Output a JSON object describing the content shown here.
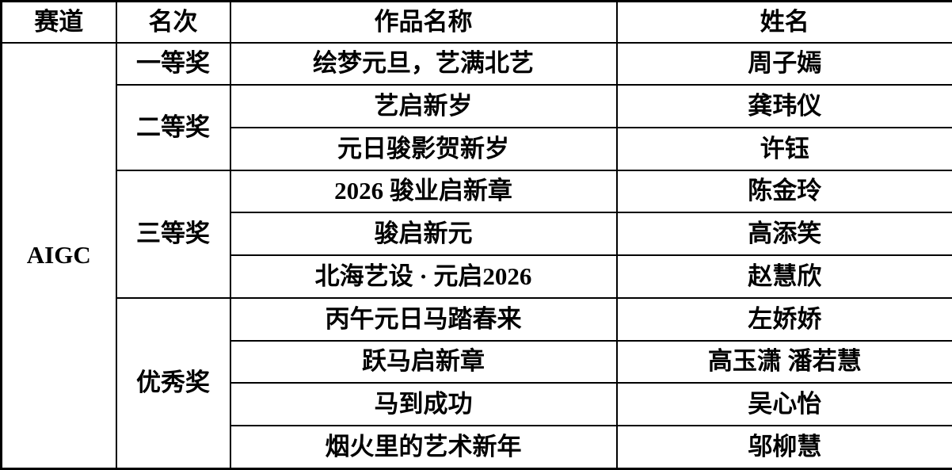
{
  "table": {
    "headers": {
      "track": "赛道",
      "rank": "名次",
      "work": "作品名称",
      "name": "姓名"
    },
    "track": "AIGC",
    "groups": [
      {
        "rank": "一等奖",
        "entries": [
          {
            "work": "绘梦元旦，艺满北艺",
            "name": "周子嫣"
          }
        ]
      },
      {
        "rank": "二等奖",
        "entries": [
          {
            "work": "艺启新岁",
            "name": "龚玮仪"
          },
          {
            "work": "元日骏影贺新岁",
            "name": "许钰"
          }
        ]
      },
      {
        "rank": "三等奖",
        "entries": [
          {
            "work": "2026 骏业启新章",
            "name": "陈金玲"
          },
          {
            "work": "骏启新元",
            "name": "高添笑"
          },
          {
            "work": "北海艺设 · 元启2026",
            "name": "赵慧欣"
          }
        ]
      },
      {
        "rank": "优秀奖",
        "entries": [
          {
            "work": "丙午元日马踏春来",
            "name": "左娇娇"
          },
          {
            "work": "跃马启新章",
            "name": "高玉潇 潘若慧"
          },
          {
            "work": "马到成功",
            "name": "吴心怡"
          },
          {
            "work": "烟火里的艺术新年",
            "name": "邬柳慧"
          }
        ]
      }
    ],
    "colors": {
      "border": "#000000",
      "text": "#000000",
      "background": "#ffffff"
    }
  }
}
